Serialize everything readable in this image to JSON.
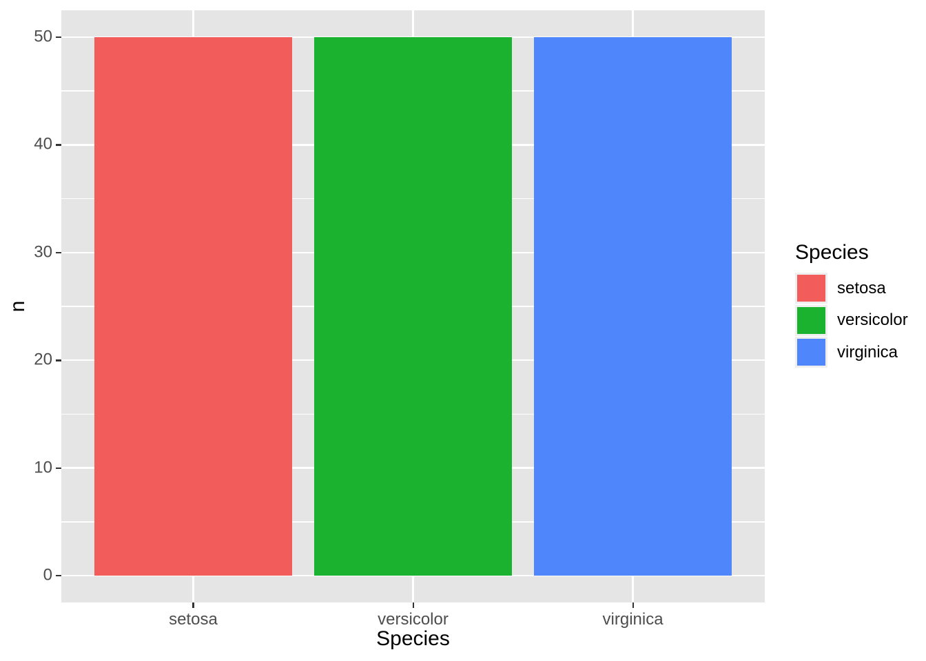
{
  "chart_data": {
    "type": "bar",
    "xlabel": "Species",
    "ylabel": "n",
    "categories": [
      "setosa",
      "versicolor",
      "virginica"
    ],
    "values": [
      50,
      50,
      50
    ],
    "bar_colors": [
      "#F25D5C",
      "#1AB22E",
      "#5086FB"
    ],
    "ylim": [
      0,
      50
    ],
    "yticks": [
      0,
      10,
      20,
      30,
      40,
      50
    ],
    "yminorticks": [
      5,
      15,
      25,
      35,
      45
    ],
    "bar_width_fraction": 0.9,
    "grid": "on",
    "legend_position": "right"
  },
  "legend": {
    "title": "Species",
    "items": [
      {
        "label": "setosa",
        "color": "#F25D5C"
      },
      {
        "label": "versicolor",
        "color": "#1AB22E"
      },
      {
        "label": "virginica",
        "color": "#5086FB"
      }
    ]
  },
  "style": {
    "background": "#FFFFFF",
    "panel_bg": "#E5E5E5",
    "grid_color": "#FFFFFF",
    "tick_mark_color": "#333333",
    "tick_label_color": "#4D4D4D",
    "axis_title_color": "#000000",
    "legend_key_bg": "#EFEFEF"
  }
}
